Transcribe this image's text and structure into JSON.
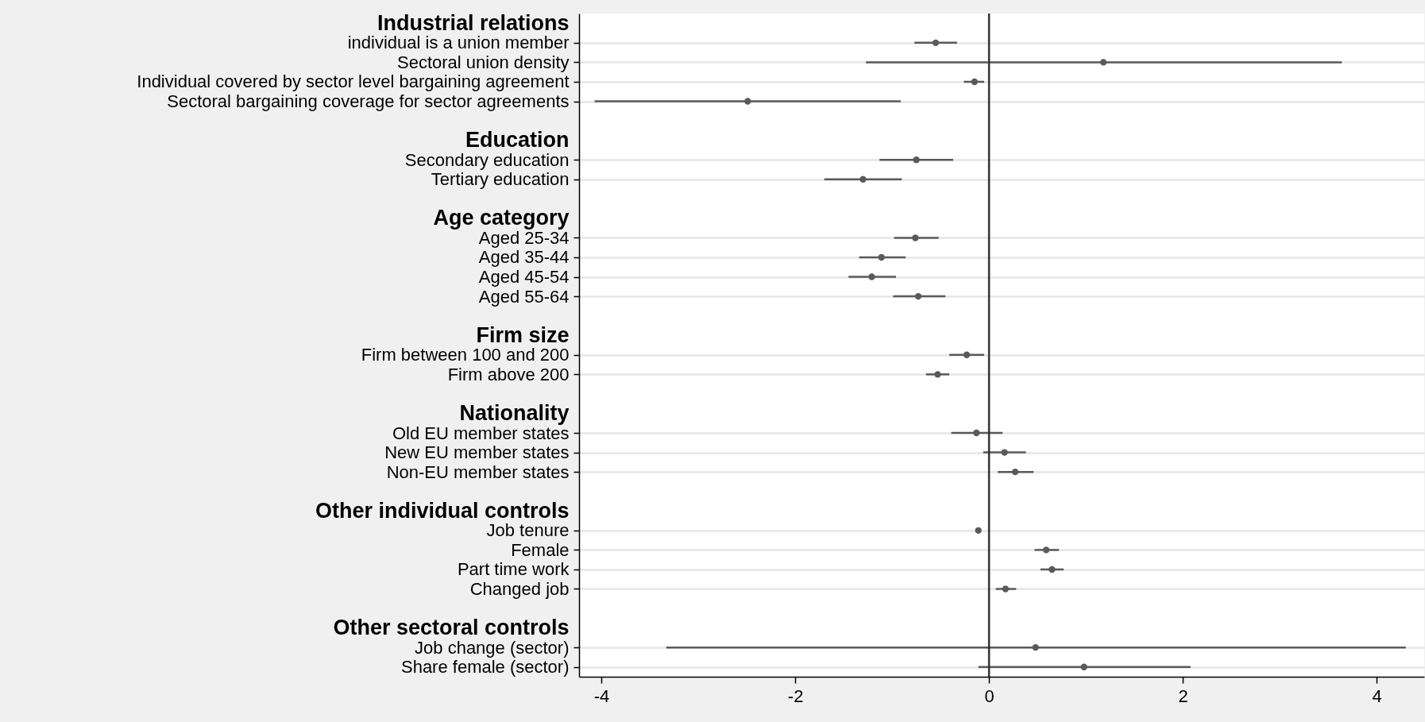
{
  "chart_data": {
    "type": "scatter",
    "orientation": "horizontal",
    "categories": [
      "Industrial relations",
      "individual is a union member",
      "Sectoral union density",
      "Individual covered by sector level bargaining agreement",
      "Sectoral bargaining coverage for sector agreements",
      null,
      "Education",
      "Secondary education",
      "Tertiary education",
      null,
      "Age category",
      "Aged 25-34",
      "Aged 35-44",
      "Aged 45-54",
      "Aged 55-64",
      null,
      "Firm size",
      "Firm between  100 and 200",
      "Firm above 200",
      null,
      "Nationality",
      "Old EU member states",
      "New EU member states",
      "Non-EU member states",
      null,
      "Other individual controls",
      "Job tenure",
      "Female",
      "Part time work",
      "Changed job",
      null,
      "Other sectoral controls",
      "Job change (sector)",
      "Share female (sector)"
    ],
    "values": [
      null,
      -0.55,
      1.18,
      -0.15,
      -2.49,
      null,
      null,
      -0.75,
      -1.3,
      null,
      null,
      -0.76,
      -1.11,
      -1.21,
      -0.73,
      null,
      null,
      -0.23,
      -0.53,
      null,
      null,
      -0.13,
      0.16,
      0.27,
      null,
      null,
      -0.11,
      0.59,
      0.65,
      0.17,
      null,
      null,
      0.48,
      0.98
    ],
    "errors": [
      null,
      [
        -0.77,
        -0.33
      ],
      [
        -1.27,
        3.64
      ],
      [
        -0.26,
        -0.05
      ],
      [
        -4.07,
        -0.91
      ],
      null,
      null,
      [
        -1.13,
        -0.37
      ],
      [
        -1.7,
        -0.9
      ],
      null,
      null,
      [
        -0.98,
        -0.52
      ],
      [
        -1.34,
        -0.86
      ],
      [
        -1.45,
        -0.96
      ],
      [
        -0.99,
        -0.45
      ],
      null,
      null,
      [
        -0.41,
        -0.05
      ],
      [
        -0.65,
        -0.41
      ],
      null,
      null,
      [
        -0.39,
        0.14
      ],
      [
        -0.06,
        0.38
      ],
      [
        0.09,
        0.46
      ],
      null,
      null,
      null,
      [
        0.47,
        0.72
      ],
      [
        0.53,
        0.77
      ],
      [
        0.07,
        0.28
      ],
      null,
      null,
      [
        -3.33,
        4.3
      ],
      [
        -0.11,
        2.08
      ]
    ],
    "color": "#5a5a5a",
    "xlim": [
      -4.23,
      4.49
    ],
    "xticks": [
      -4,
      -2,
      0,
      2,
      4
    ],
    "grid": "y",
    "marker": "circle",
    "ref_lines": [
      {
        "axis": "x",
        "value": 0,
        "color": "#333333"
      }
    ]
  }
}
